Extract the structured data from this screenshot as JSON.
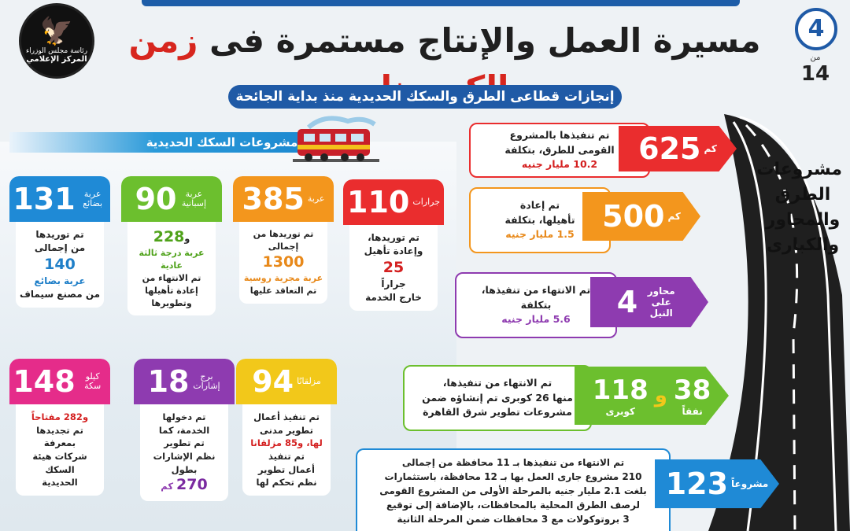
{
  "header": {
    "logo_line1": "رئاسة مجلس الوزراء",
    "logo_line2": "المركز الإعلامي",
    "title_part1": "مسيرة العمل والإنتاج مستمرة فى",
    "title_part2": "زمن الكورونا",
    "page_current": "4",
    "page_of": "من",
    "page_total": "14",
    "subtitle": "إنجازات قطاعى الطرق والسكك الحديدية منذ بداية الجائحة"
  },
  "railway": {
    "header": "مشروعات السكك الحديدية",
    "cards": [
      {
        "num": "110",
        "unit": "جرارات",
        "l1": "تم توريدها،",
        "l2": "وإعادة تأهيل",
        "hl": "25",
        "l3": "جراراً",
        "l4": "خارج الخدمة"
      },
      {
        "num": "385",
        "unit": "عربة",
        "l1": "تم توريدها من",
        "l2": "إجمالى",
        "hl": "1300",
        "l3": "عربة مجرية روسية",
        "l4": "تم التعاقد عليها"
      },
      {
        "num": "90",
        "unit": "عربة إسبانية",
        "l1": "و",
        "hl": "228",
        "l2": "عربة درجة ثالثة عادية",
        "l3": "تم الانتهاء من",
        "l4": "إعادة تأهيلها وتطويرها"
      },
      {
        "num": "131",
        "unit": "عربة بضائع",
        "l1": "تم توريدها",
        "l2": "من إجمالى",
        "hl": "140",
        "l3": "عربة بضائع",
        "l4": "من مصنع سيماف"
      },
      {
        "num": "94",
        "unit": "مزلقانًا",
        "l1": "تم تنفيذ أعمال",
        "l2": "تطوير مدنى",
        "l3": "لها، و85 مزلقانا",
        "l4": "تم تنفيذ",
        "l5": "أعمال تطوير",
        "l6": "نظم تحكم لها"
      },
      {
        "num": "18",
        "unit": "برج إشارات",
        "l1": "تم دخولها",
        "l2": "الخدمة، كما",
        "l3": "تم تطوير",
        "l4": "نظم الإشارات",
        "l5": "بطول",
        "hl": "270",
        "unit2": "كم"
      },
      {
        "num": "148",
        "unit": "كيلو سكة",
        "l1": "و282 مفتاحاً",
        "l2": "تم تجديدها",
        "l3": "بمعرفة",
        "l4": "شركات هيئة",
        "l5": "السكك",
        "l6": "الحديدية"
      }
    ]
  },
  "roads": {
    "label": [
      "مشروعات",
      "الطرق",
      "والمحاور",
      "والكبارى"
    ],
    "items": [
      {
        "num": "625",
        "unit": "كم",
        "t1": "تم تنفيذها بالمشروع",
        "t2": "القومى للطرق، بتكلفة",
        "hl": "10.2 مليار جنيه"
      },
      {
        "num": "500",
        "unit": "كم",
        "t1": "تم إعادة",
        "t2": "تأهيلها، بتكلفة",
        "hl": "1.5 مليار جنيه"
      },
      {
        "num": "4",
        "unit": "محاور على النيل",
        "t1": "تم الانتهاء من تنفيذها،",
        "t2": "بتكلفة",
        "hl": "5.6 مليار جنيه"
      },
      {
        "num": "118",
        "unit": "كوبرى",
        "num2": "38",
        "unit2": "نفقاً",
        "and": "و",
        "t1": "تم الانتهاء من تنفيذها،",
        "t2": "منها 26 كوبرى تم إنشاؤه ضمن",
        "t3": "مشروعات تطوير شرق القاهرة"
      },
      {
        "num": "123",
        "unit": "مشروعاً",
        "t1": "تم الانتهاء من تنفيذها بـ 11 محافظة من إجمالى",
        "t2": "210 مشروع جارى العمل بها بـ 12 محافظة، باستثمارات",
        "t3": "بلغت 2.1 مليار جنيه بالمرحلة الأولى من المشروع القومى",
        "t4": "لرصف الطرق المحلية بالمحافظات، بالإضافة إلى توقيع",
        "t5": "3 بروتوكولات مع 3 محافظات ضمن المرحلة الثانية"
      }
    ]
  },
  "colors": {
    "brand_blue": "#1f5aa6",
    "red": "#ea2d2e",
    "orange": "#f3961d",
    "purple": "#8e3bb0",
    "green": "#6cbf2e",
    "blue": "#1f8ad6",
    "yellow": "#f2c81a",
    "pink": "#e52c8a"
  }
}
